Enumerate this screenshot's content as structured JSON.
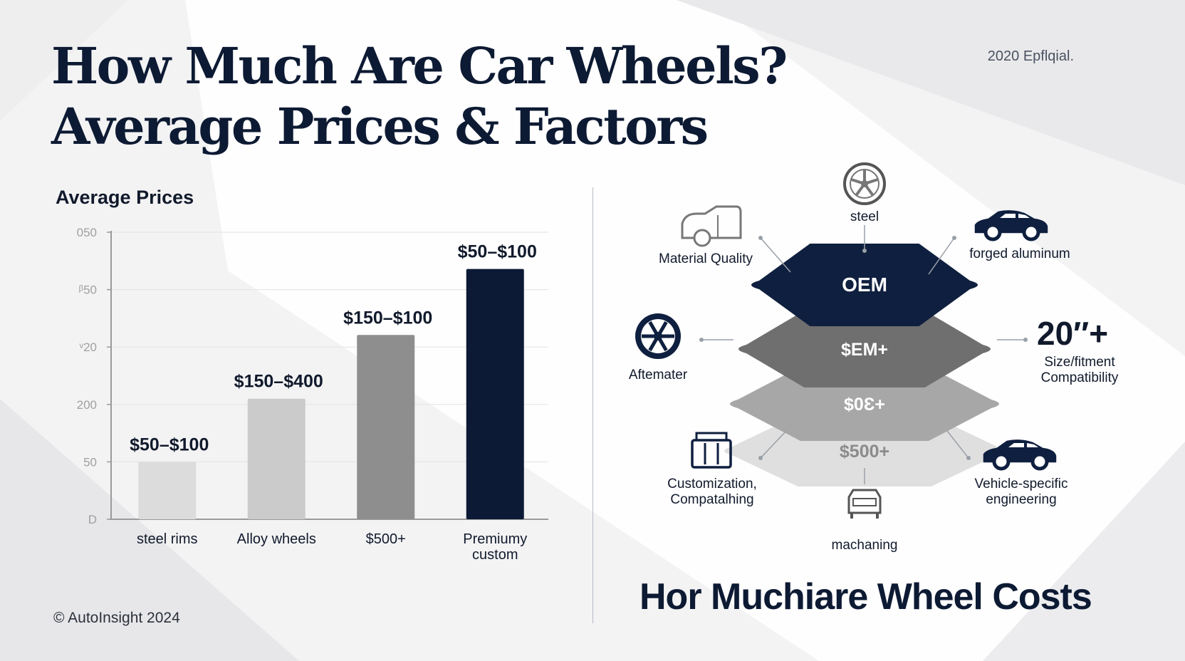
{
  "title": {
    "line1": "How Much Are Car Wheels?",
    "line2": "Average Prices & Factors"
  },
  "top_note": "2020 Epflqial.",
  "chart_heading": "Average Prices",
  "chart_data": {
    "type": "bar",
    "title": "Average Prices",
    "categories": [
      [
        "steel rims"
      ],
      [
        "Alloy wheels"
      ],
      [
        "$500+"
      ],
      [
        "Premiumy",
        "custom"
      ]
    ],
    "values": [
      100,
      210,
      321,
      436
    ],
    "data_labels": [
      "$50–$100",
      "$150–$400",
      "$150–$100",
      "$50–$100"
    ],
    "yticks": [
      "D",
      "50",
      "200",
      "ᵛ20",
      "ᵝ50",
      "050"
    ],
    "ylim": [
      0,
      500
    ],
    "grid": true,
    "colors": [
      "#dcdcdc",
      "#cbcbcb",
      "#8e8e8e",
      "#0d1a36"
    ]
  },
  "factors": {
    "layers": [
      {
        "label": "OEM",
        "color": "#0f1f3f"
      },
      {
        "label": "$EM+",
        "color": "#6f6f6f"
      },
      {
        "label": "$0Ɛ+",
        "color": "#a7a7a7"
      },
      {
        "label": "$500+",
        "color": "#dfdfdf"
      }
    ],
    "items": [
      {
        "name": "steel",
        "icon": "alloy-wheel-icon"
      },
      {
        "name": "Material Quality",
        "icon": "car-outline-icon"
      },
      {
        "name": "forged aluminum",
        "icon": "sedan-icon"
      },
      {
        "name": "Aftemater",
        "icon": "wheel-icon"
      },
      {
        "size": "20″+",
        "name": [
          "Size/fitment",
          "Compatibility"
        ]
      },
      {
        "name": [
          "Customization,",
          "Compatalhing"
        ],
        "icon": "toolbox-icon"
      },
      {
        "name": [
          "Vehicle-specific",
          "engineering"
        ],
        "icon": "sedan-icon"
      },
      {
        "name": "machaning",
        "icon": "car-front-icon"
      }
    ],
    "accent_color": "#0f1f3f"
  },
  "bottom_title": "Hor Muchiare Wheel Costs",
  "copyright": "© AutoInsight 2024"
}
